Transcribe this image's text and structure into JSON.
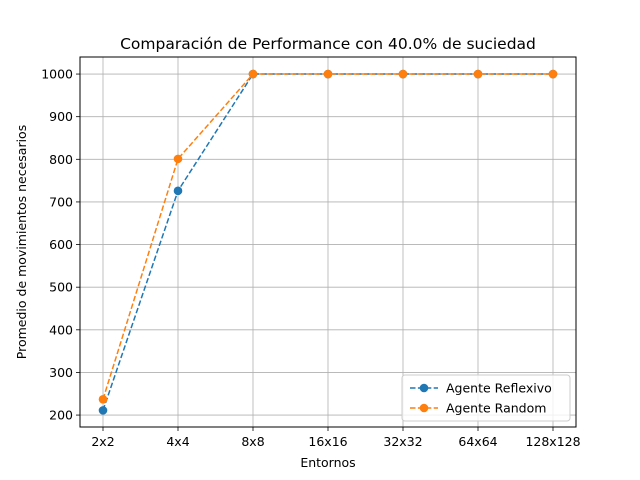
{
  "chart_data": {
    "type": "line",
    "title": "Comparación de Performance con 40.0% de suciedad",
    "xlabel": "Entornos",
    "ylabel": "Promedio de movimientos necesarios",
    "categories": [
      "2x2",
      "4x4",
      "8x8",
      "16x16",
      "32x32",
      "64x64",
      "128x128"
    ],
    "yticks": [
      200,
      300,
      400,
      500,
      600,
      700,
      800,
      900,
      1000
    ],
    "ylim": [
      172,
      1040
    ],
    "grid": true,
    "legend_position": "bottom-right",
    "series": [
      {
        "name": "Agente Reflexivo",
        "values": [
          211,
          726,
          1000,
          1000,
          1000,
          1000,
          1000
        ],
        "color": "#1f77b4"
      },
      {
        "name": "Agente Random",
        "values": [
          237,
          801,
          1000,
          1000,
          1000,
          1000,
          1000
        ],
        "color": "#ff7f0e"
      }
    ]
  }
}
